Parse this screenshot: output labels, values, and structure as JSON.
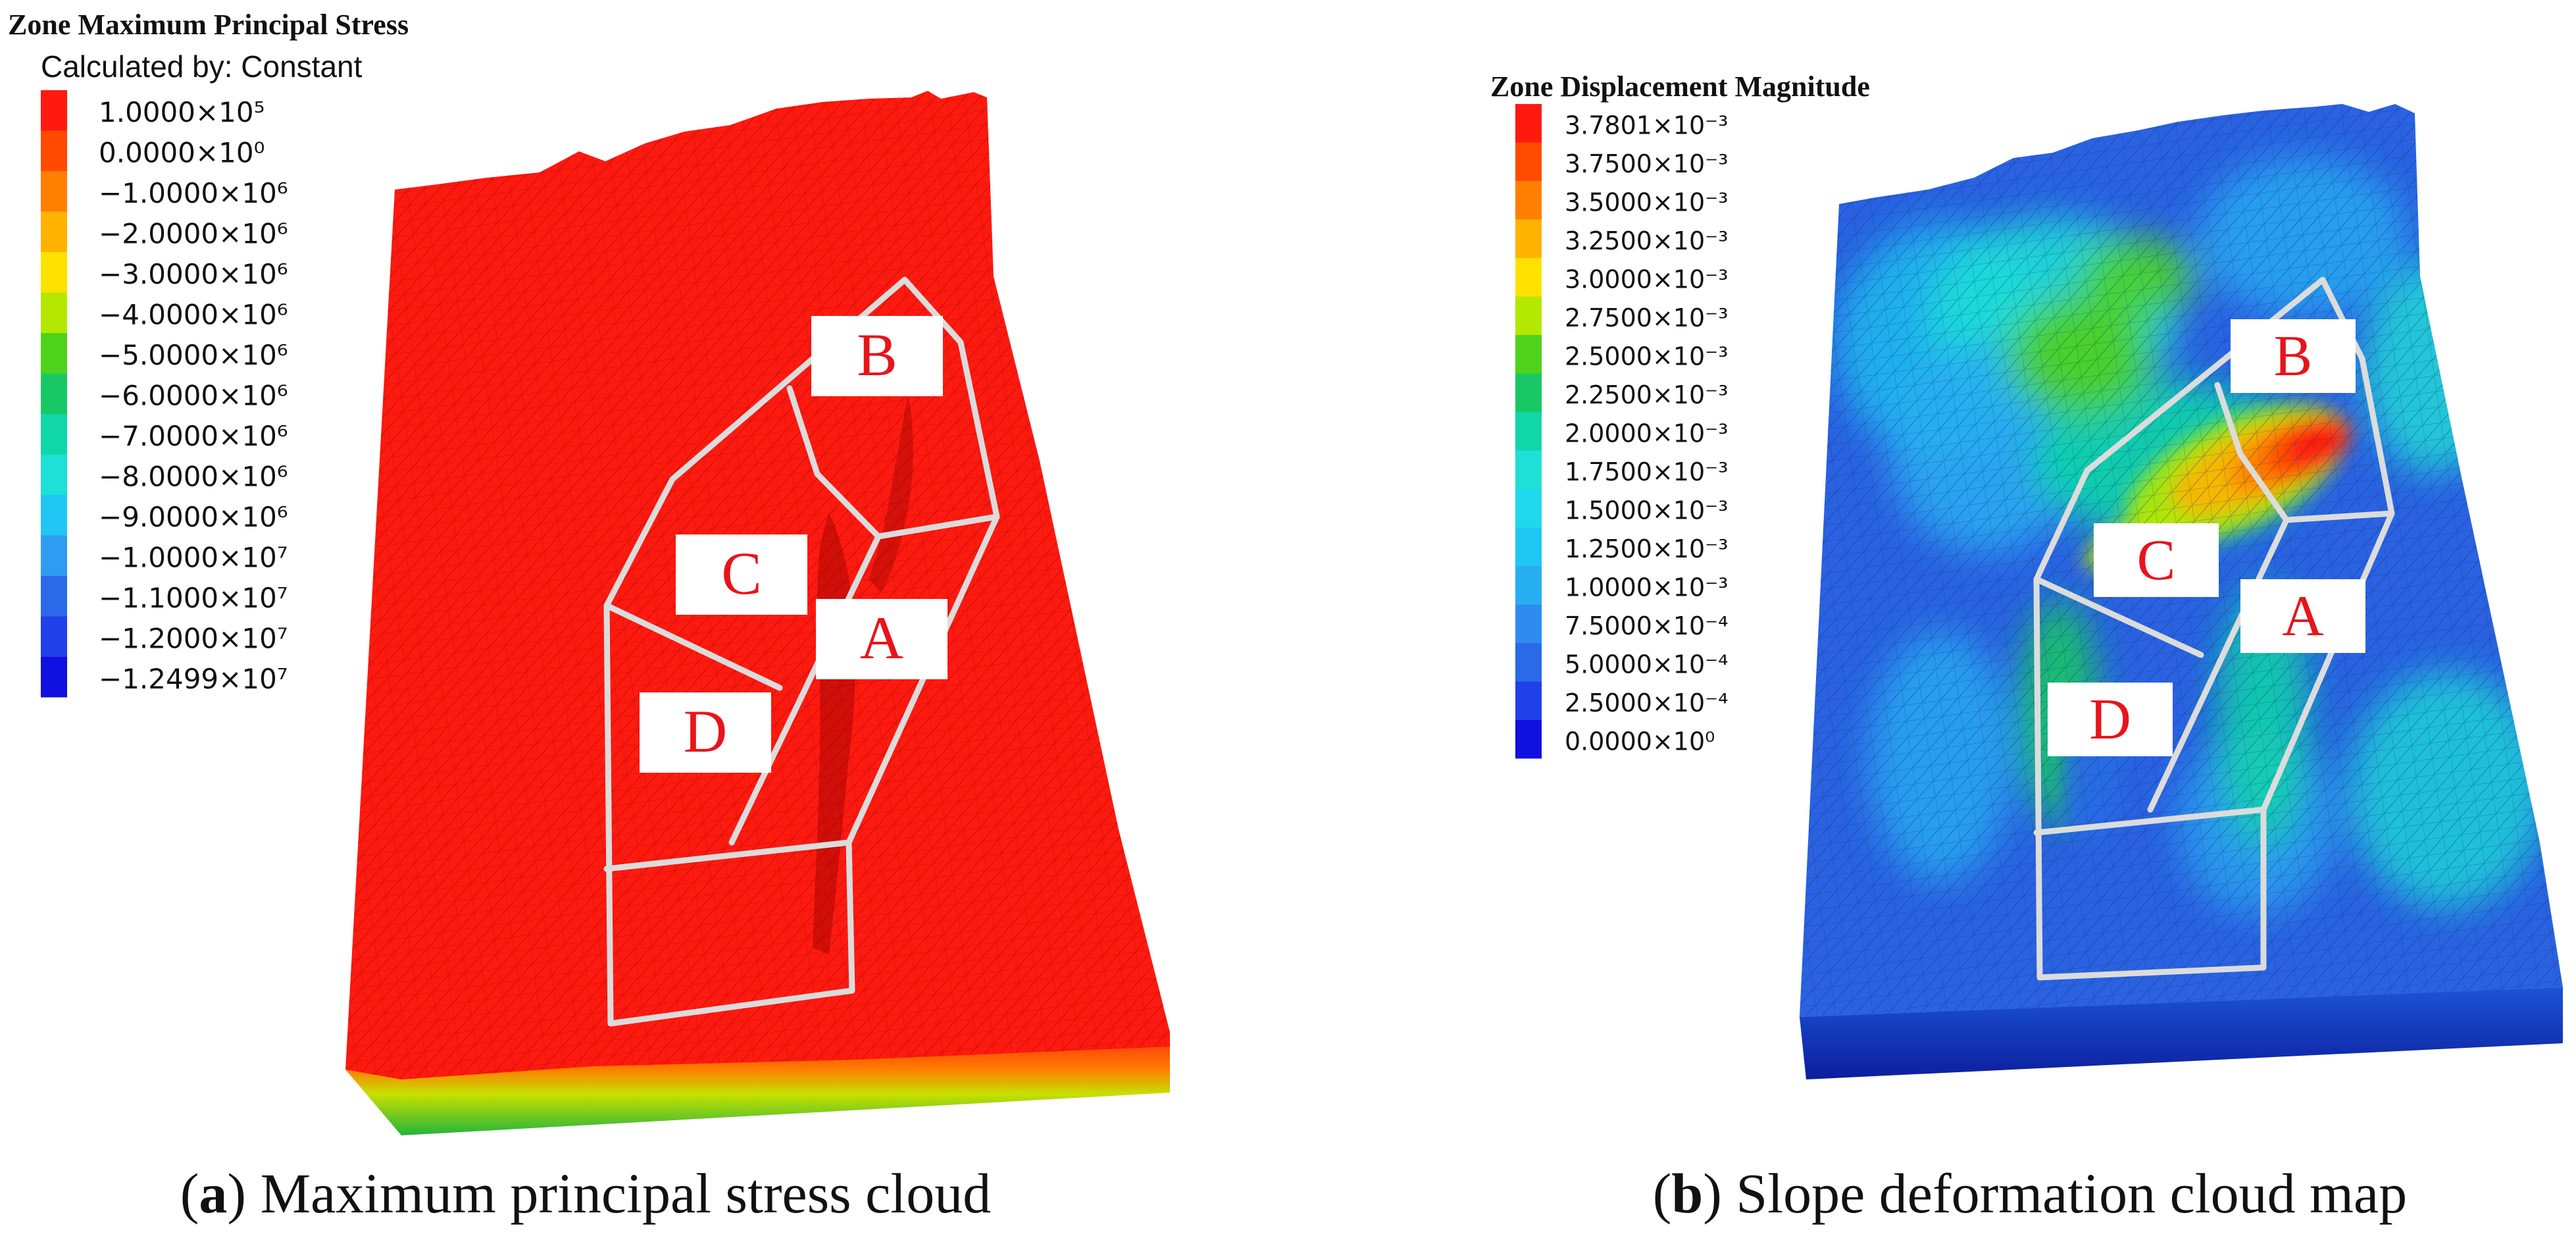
{
  "panel_a": {
    "legend_title": "Zone Maximum Principal Stress",
    "legend_subtitle": "Calculated by: Constant",
    "legend_entries": [
      {
        "label": "1.0000×10⁵",
        "color": "#ff1a10"
      },
      {
        "label": "0.0000×10⁰",
        "color": "#ff4a00"
      },
      {
        "label": "−1.0000×10⁶",
        "color": "#ff7f00"
      },
      {
        "label": "−2.0000×10⁶",
        "color": "#ffb300"
      },
      {
        "label": "−3.0000×10⁶",
        "color": "#ffe100"
      },
      {
        "label": "−4.0000×10⁶",
        "color": "#b5e800"
      },
      {
        "label": "−5.0000×10⁶",
        "color": "#4fd21b"
      },
      {
        "label": "−6.0000×10⁶",
        "color": "#18c864"
      },
      {
        "label": "−7.0000×10⁶",
        "color": "#10d6a8"
      },
      {
        "label": "−8.0000×10⁶",
        "color": "#1ee0d6"
      },
      {
        "label": "−9.0000×10⁶",
        "color": "#20c6f4"
      },
      {
        "label": "−1.0000×10⁷",
        "color": "#2e9cf0"
      },
      {
        "label": "−1.1000×10⁷",
        "color": "#2a6ae8"
      },
      {
        "label": "−1.2000×10⁷",
        "color": "#2040ea"
      },
      {
        "label": "−1.2499×10⁷",
        "color": "#1010e0"
      }
    ],
    "zone_labels": [
      "B",
      "C",
      "A",
      "D"
    ],
    "caption_letter": "a",
    "caption_text": " Maximum principal stress cloud"
  },
  "panel_b": {
    "legend_title": "Zone Displacement Magnitude",
    "legend_entries": [
      {
        "label": "3.7801×10⁻³",
        "color": "#ff1a10"
      },
      {
        "label": "3.7500×10⁻³",
        "color": "#ff4a00"
      },
      {
        "label": "3.5000×10⁻³",
        "color": "#ff7f00"
      },
      {
        "label": "3.2500×10⁻³",
        "color": "#ffb300"
      },
      {
        "label": "3.0000×10⁻³",
        "color": "#ffe100"
      },
      {
        "label": "2.7500×10⁻³",
        "color": "#b5e800"
      },
      {
        "label": "2.5000×10⁻³",
        "color": "#4fd21b"
      },
      {
        "label": "2.2500×10⁻³",
        "color": "#18c864"
      },
      {
        "label": "2.0000×10⁻³",
        "color": "#10d6a8"
      },
      {
        "label": "1.7500×10⁻³",
        "color": "#1ee0d6"
      },
      {
        "label": "1.5000×10⁻³",
        "color": "#20d8ec"
      },
      {
        "label": "1.2500×10⁻³",
        "color": "#20c6f4"
      },
      {
        "label": "1.0000×10⁻³",
        "color": "#28aef2"
      },
      {
        "label": "7.5000×10⁻⁴",
        "color": "#2e8cee"
      },
      {
        "label": "5.0000×10⁻⁴",
        "color": "#2a6ae8"
      },
      {
        "label": "2.5000×10⁻⁴",
        "color": "#2040ea"
      },
      {
        "label": "0.0000×10⁰",
        "color": "#1010e0"
      }
    ],
    "zone_labels": [
      "B",
      "C",
      "A",
      "D"
    ],
    "caption_letter": "b",
    "caption_text": " Slope deformation cloud map"
  }
}
